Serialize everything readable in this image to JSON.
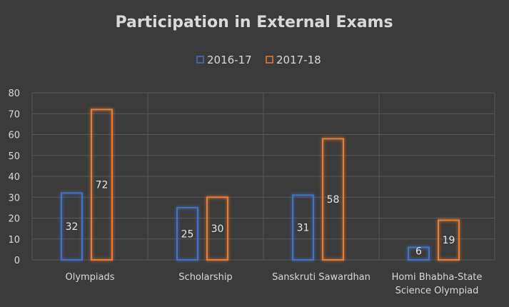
{
  "chart_data": {
    "type": "bar",
    "title": "Participation in External Exams",
    "categories": [
      [
        "Olympiads"
      ],
      [
        "Scholarship"
      ],
      [
        "Sanskruti Sawardhan"
      ],
      [
        "Homi Bhabha-State",
        "Science Olympiad"
      ]
    ],
    "series": [
      {
        "name": "2016-17",
        "color": "#4472c4",
        "values": [
          32,
          25,
          31,
          6
        ]
      },
      {
        "name": "2017-18",
        "color": "#ed7d31",
        "values": [
          72,
          30,
          58,
          19
        ]
      }
    ],
    "ylim": [
      0,
      80
    ],
    "yticks": [
      0,
      10,
      20,
      30,
      40,
      50,
      60,
      70,
      80
    ],
    "grid": true,
    "legend_position": "top-center"
  }
}
